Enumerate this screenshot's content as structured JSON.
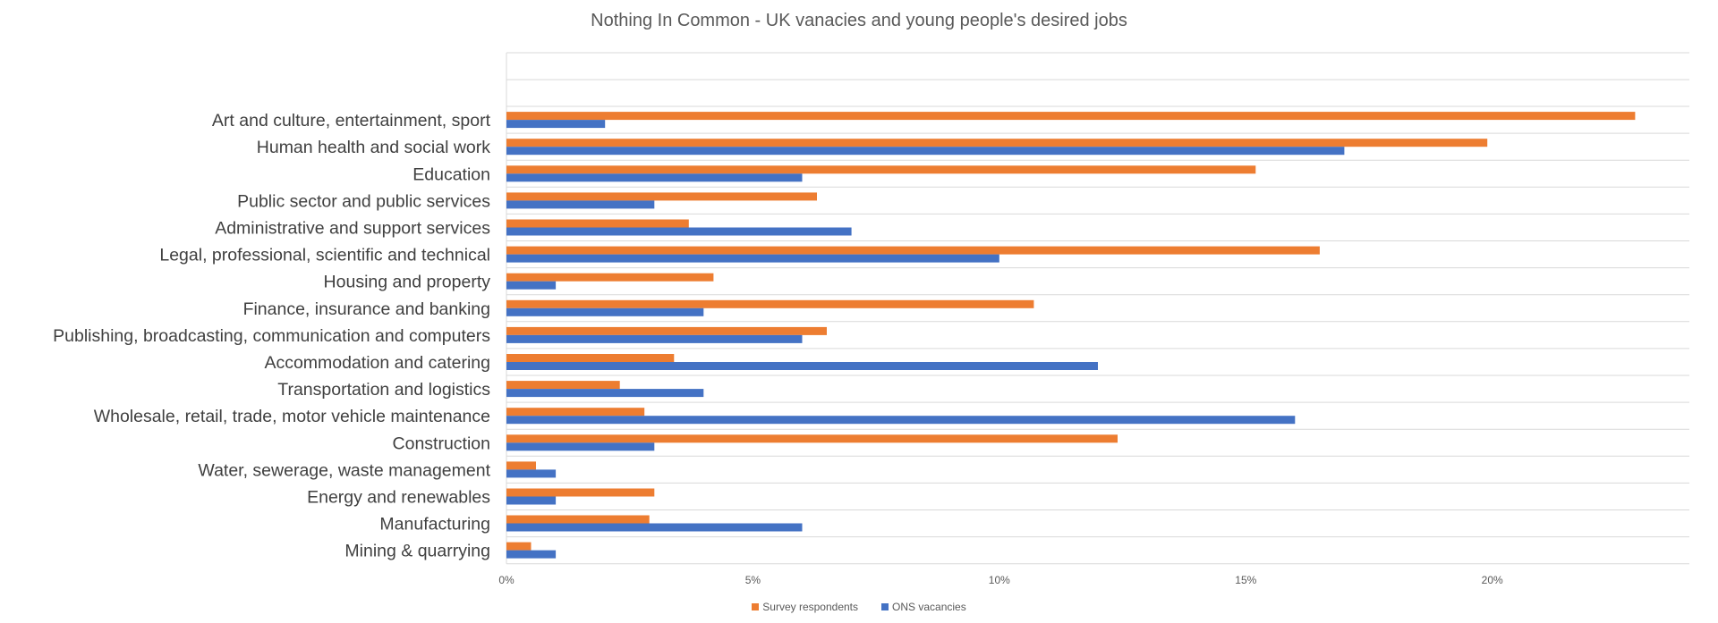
{
  "chart_data": {
    "type": "bar",
    "orientation": "horizontal",
    "title": "Nothing In Common - UK vanacies and young people's desired jobs",
    "categories": [
      "Art and culture, entertainment, sport",
      "Human health and social work",
      "Education",
      "Public sector and public services",
      "Administrative and support services",
      "Legal, professional, scientific and technical",
      "Housing and property",
      "Finance, insurance and banking",
      "Publishing, broadcasting, communication and computers",
      "Accommodation and catering",
      "Transportation and logistics",
      "Wholesale, retail, trade, motor vehicle maintenance",
      "Construction",
      "Water, sewerage, waste management",
      "Energy and renewables",
      "Manufacturing",
      "Mining & quarrying"
    ],
    "series": [
      {
        "name": "Survey respondents",
        "color": "#ED7D31",
        "values": [
          22.9,
          19.9,
          15.2,
          6.3,
          3.7,
          16.5,
          4.2,
          10.7,
          6.5,
          3.4,
          2.3,
          2.8,
          12.4,
          0.6,
          3.0,
          2.9,
          0.5
        ]
      },
      {
        "name": "ONS vacancies",
        "color": "#4472C4",
        "values": [
          2.0,
          17.0,
          6.0,
          3.0,
          7.0,
          10.0,
          1.0,
          4.0,
          6.0,
          12.0,
          4.0,
          16.0,
          3.0,
          1.0,
          1.0,
          6.0,
          1.0
        ]
      }
    ],
    "xlim": [
      0,
      24
    ],
    "xticks": [
      0,
      5,
      10,
      15,
      20
    ],
    "xtick_labels": [
      "0%",
      "5%",
      "10%",
      "15%",
      "20%"
    ],
    "xlabel": "",
    "ylabel": "",
    "grid": "horizontal",
    "legend_position": "bottom"
  }
}
